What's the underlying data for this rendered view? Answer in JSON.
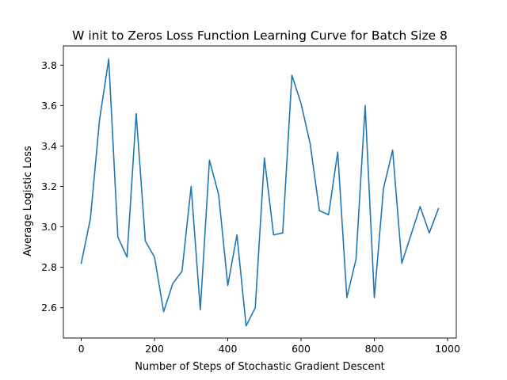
{
  "chart_data": {
    "type": "line",
    "title": "W init to Zeros Loss Function Learning Curve for Batch Size 8",
    "xlabel": "Number of Steps of Stochastic Gradient Descent",
    "ylabel": "Average Logistic Loss",
    "xlim": [
      -48.75,
      1023.75
    ],
    "ylim": [
      2.45,
      3.895
    ],
    "xticks": [
      0,
      200,
      400,
      600,
      800,
      1000
    ],
    "xtick_labels": [
      "0",
      "200",
      "400",
      "600",
      "800",
      "1000"
    ],
    "yticks": [
      2.6,
      2.8,
      3.0,
      3.2,
      3.4,
      3.6,
      3.8
    ],
    "ytick_labels": [
      "2.6",
      "2.8",
      "3.0",
      "3.2",
      "3.4",
      "3.6",
      "3.8"
    ],
    "grid": false,
    "series": [
      {
        "color": "#1f77b4",
        "x": [
          0,
          25,
          50,
          75,
          100,
          125,
          150,
          175,
          200,
          225,
          250,
          275,
          300,
          325,
          350,
          375,
          400,
          425,
          450,
          475,
          500,
          525,
          550,
          575,
          600,
          625,
          650,
          675,
          700,
          725,
          750,
          775,
          800,
          825,
          850,
          875,
          900,
          925,
          950,
          975
        ],
        "y": [
          2.82,
          3.04,
          3.53,
          3.83,
          2.95,
          2.85,
          3.56,
          2.93,
          2.85,
          2.58,
          2.72,
          2.78,
          3.2,
          2.59,
          3.33,
          3.16,
          2.71,
          2.96,
          2.51,
          2.6,
          3.34,
          2.96,
          2.97,
          3.75,
          3.61,
          3.41,
          3.08,
          3.06,
          3.37,
          2.65,
          2.84,
          3.6,
          2.65,
          3.19,
          3.38,
          2.82,
          2.96,
          3.1,
          2.97,
          3.09
        ]
      }
    ]
  }
}
